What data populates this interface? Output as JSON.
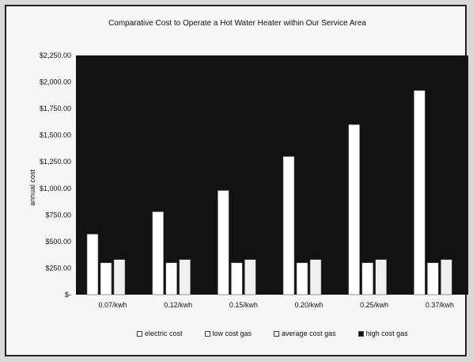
{
  "chart_data": {
    "type": "bar",
    "title": "Comparative Cost to Operate a Hot Water Heater within Our Service Area",
    "ylabel": "annual cost",
    "xlabel": "",
    "categories": [
      "0.07/kwh",
      "0.12/kwh",
      "0.15/kwh",
      "0.20/kwh",
      "0.25/kwh",
      "0.37/kwh"
    ],
    "ylim": [
      0,
      2250
    ],
    "yticks": [
      "$-",
      "$250.00",
      "$500.00",
      "$750.00",
      "$1,000.00",
      "$1,250.00",
      "$1,500.00",
      "$1,750.00",
      "$2,000.00",
      "$2,250.00"
    ],
    "series": [
      {
        "name": "electric cost",
        "values": [
          570,
          780,
          980,
          1300,
          1600,
          1920
        ],
        "color": "#ffffff"
      },
      {
        "name": "low cost gas",
        "values": [
          300,
          300,
          300,
          300,
          300,
          300
        ],
        "color": "#ffffff"
      },
      {
        "name": "average cost gas",
        "values": [
          330,
          330,
          330,
          330,
          330,
          330
        ],
        "color": "#f0f0f0"
      },
      {
        "name": "high cost gas",
        "values": [
          0,
          0,
          0,
          0,
          0,
          0
        ],
        "color": "#111111"
      }
    ],
    "legend_position": "bottom",
    "grid": false,
    "plot_background": "#121212"
  }
}
